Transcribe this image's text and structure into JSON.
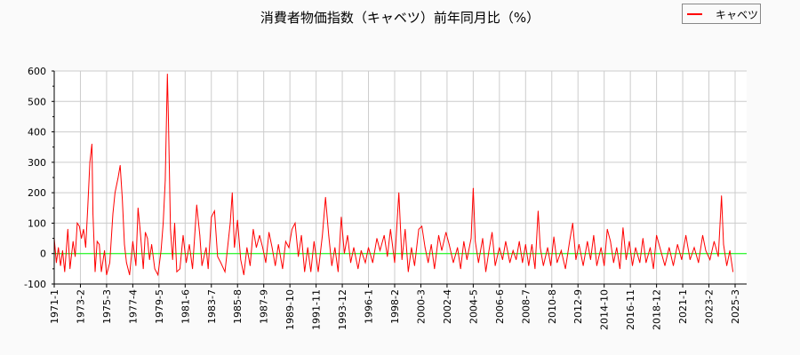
{
  "chart_data": {
    "type": "line",
    "title": "消費者物価指数（キャベツ）前年同月比（%）",
    "ylim": [
      -100,
      600
    ],
    "yticks": [
      "-100",
      "0",
      "100",
      "200",
      "300",
      "400",
      "500",
      "600"
    ],
    "xticks": [
      "1971-1",
      "1973-2",
      "1975-3",
      "1977-4",
      "1979-5",
      "1981-6",
      "1983-7",
      "1985-8",
      "1987-9",
      "1989-10",
      "1991-11",
      "1993-12",
      "1996-1",
      "1998-2",
      "2000-3",
      "2002-4",
      "2004-5",
      "2006-6",
      "2008-7",
      "2010-8",
      "2012-9",
      "2014-10",
      "2016-11",
      "2018-12",
      "2021-1",
      "2023-2",
      "2025-3"
    ],
    "grid": true,
    "legend": "top-right",
    "reference_line": 0,
    "colors": {
      "series": "#ff0000",
      "reference": "#00ff00"
    },
    "series": [
      {
        "name": "キャベツ",
        "points": [
          [
            "1971-1",
            50
          ],
          [
            "1971-3",
            -30
          ],
          [
            "1971-5",
            20
          ],
          [
            "1971-7",
            -40
          ],
          [
            "1971-9",
            10
          ],
          [
            "1971-11",
            -60
          ],
          [
            "1972-2",
            80
          ],
          [
            "1972-4",
            -50
          ],
          [
            "1972-7",
            40
          ],
          [
            "1972-9",
            -10
          ],
          [
            "1972-11",
            100
          ],
          [
            "1973-1",
            90
          ],
          [
            "1973-3",
            50
          ],
          [
            "1973-5",
            80
          ],
          [
            "1973-7",
            20
          ],
          [
            "1973-9",
            150
          ],
          [
            "1973-11",
            300
          ],
          [
            "1974-1",
            360
          ],
          [
            "1974-2",
            130
          ],
          [
            "1974-4",
            -60
          ],
          [
            "1974-6",
            40
          ],
          [
            "1974-8",
            30
          ],
          [
            "1974-10",
            -60
          ],
          [
            "1975-1",
            10
          ],
          [
            "1975-3",
            -70
          ],
          [
            "1975-6",
            -30
          ],
          [
            "1975-9",
            130
          ],
          [
            "1975-11",
            200
          ],
          [
            "1976-2",
            250
          ],
          [
            "1976-4",
            290
          ],
          [
            "1976-6",
            180
          ],
          [
            "1976-8",
            30
          ],
          [
            "1976-10",
            -30
          ],
          [
            "1977-1",
            -70
          ],
          [
            "1977-4",
            40
          ],
          [
            "1977-7",
            -40
          ],
          [
            "1977-9",
            150
          ],
          [
            "1977-11",
            80
          ],
          [
            "1978-2",
            -50
          ],
          [
            "1978-4",
            70
          ],
          [
            "1978-6",
            50
          ],
          [
            "1978-8",
            -20
          ],
          [
            "1978-10",
            30
          ],
          [
            "1979-1",
            -50
          ],
          [
            "1979-4",
            -70
          ],
          [
            "1979-7",
            10
          ],
          [
            "1979-9",
            100
          ],
          [
            "1979-11",
            240
          ],
          [
            "1980-1",
            590
          ],
          [
            "1980-2",
            440
          ],
          [
            "1980-4",
            80
          ],
          [
            "1980-6",
            -20
          ],
          [
            "1980-8",
            100
          ],
          [
            "1980-10",
            -60
          ],
          [
            "1981-1",
            -50
          ],
          [
            "1981-4",
            60
          ],
          [
            "1981-7",
            -30
          ],
          [
            "1981-10",
            30
          ],
          [
            "1982-1",
            -50
          ],
          [
            "1982-5",
            160
          ],
          [
            "1982-8",
            60
          ],
          [
            "1982-10",
            -40
          ],
          [
            "1983-2",
            20
          ],
          [
            "1983-4",
            -50
          ],
          [
            "1983-7",
            120
          ],
          [
            "1983-10",
            140
          ],
          [
            "1984-1",
            -10
          ],
          [
            "1984-4",
            -30
          ],
          [
            "1984-8",
            -60
          ],
          [
            "1985-1",
            100
          ],
          [
            "1985-3",
            200
          ],
          [
            "1985-5",
            20
          ],
          [
            "1985-8",
            110
          ],
          [
            "1985-11",
            -20
          ],
          [
            "1986-2",
            -70
          ],
          [
            "1986-5",
            20
          ],
          [
            "1986-8",
            -40
          ],
          [
            "1986-11",
            80
          ],
          [
            "1987-2",
            20
          ],
          [
            "1987-5",
            60
          ],
          [
            "1987-8",
            20
          ],
          [
            "1987-11",
            -30
          ],
          [
            "1988-2",
            70
          ],
          [
            "1988-5",
            20
          ],
          [
            "1988-8",
            -40
          ],
          [
            "1988-11",
            30
          ],
          [
            "1989-3",
            -50
          ],
          [
            "1989-6",
            40
          ],
          [
            "1989-9",
            20
          ],
          [
            "1989-12",
            80
          ],
          [
            "1990-3",
            100
          ],
          [
            "1990-6",
            -10
          ],
          [
            "1990-9",
            60
          ],
          [
            "1990-12",
            -60
          ],
          [
            "1991-3",
            20
          ],
          [
            "1991-6",
            -60
          ],
          [
            "1991-9",
            40
          ],
          [
            "1992-1",
            -60
          ],
          [
            "1992-5",
            60
          ],
          [
            "1992-8",
            185
          ],
          [
            "1992-11",
            60
          ],
          [
            "1993-2",
            -40
          ],
          [
            "1993-5",
            20
          ],
          [
            "1993-8",
            -60
          ],
          [
            "1993-11",
            120
          ],
          [
            "1994-2",
            0
          ],
          [
            "1994-5",
            60
          ],
          [
            "1994-8",
            -30
          ],
          [
            "1994-11",
            20
          ],
          [
            "1995-3",
            -50
          ],
          [
            "1995-6",
            10
          ],
          [
            "1995-10",
            -30
          ],
          [
            "1996-1",
            20
          ],
          [
            "1996-5",
            -30
          ],
          [
            "1996-9",
            50
          ],
          [
            "1996-12",
            10
          ],
          [
            "1997-4",
            60
          ],
          [
            "1997-7",
            -10
          ],
          [
            "1997-10",
            80
          ],
          [
            "1998-2",
            -30
          ],
          [
            "1998-6",
            200
          ],
          [
            "1998-9",
            -20
          ],
          [
            "1998-12",
            80
          ],
          [
            "1999-3",
            -60
          ],
          [
            "1999-6",
            20
          ],
          [
            "1999-9",
            -40
          ],
          [
            "2000-1",
            80
          ],
          [
            "2000-4",
            90
          ],
          [
            "2000-7",
            20
          ],
          [
            "2000-10",
            -30
          ],
          [
            "2001-1",
            30
          ],
          [
            "2001-4",
            -50
          ],
          [
            "2001-8",
            60
          ],
          [
            "2001-11",
            10
          ],
          [
            "2002-3",
            70
          ],
          [
            "2002-6",
            30
          ],
          [
            "2002-10",
            -30
          ],
          [
            "2003-2",
            20
          ],
          [
            "2003-5",
            -50
          ],
          [
            "2003-8",
            40
          ],
          [
            "2003-11",
            -20
          ],
          [
            "2004-3",
            50
          ],
          [
            "2004-5",
            215
          ],
          [
            "2004-7",
            40
          ],
          [
            "2004-10",
            -30
          ],
          [
            "2005-2",
            50
          ],
          [
            "2005-5",
            -60
          ],
          [
            "2005-8",
            10
          ],
          [
            "2005-11",
            70
          ],
          [
            "2006-2",
            -40
          ],
          [
            "2006-6",
            20
          ],
          [
            "2006-9",
            -20
          ],
          [
            "2006-12",
            40
          ],
          [
            "2007-4",
            -30
          ],
          [
            "2007-7",
            10
          ],
          [
            "2007-10",
            -20
          ],
          [
            "2008-1",
            40
          ],
          [
            "2008-4",
            -30
          ],
          [
            "2008-7",
            30
          ],
          [
            "2008-10",
            -40
          ],
          [
            "2009-1",
            30
          ],
          [
            "2009-4",
            -50
          ],
          [
            "2009-7",
            140
          ],
          [
            "2009-9",
            20
          ],
          [
            "2009-12",
            -40
          ],
          [
            "2010-4",
            20
          ],
          [
            "2010-7",
            -40
          ],
          [
            "2010-10",
            55
          ],
          [
            "2011-1",
            -30
          ],
          [
            "2011-5",
            10
          ],
          [
            "2011-9",
            -50
          ],
          [
            "2012-1",
            40
          ],
          [
            "2012-4",
            100
          ],
          [
            "2012-7",
            -20
          ],
          [
            "2012-10",
            30
          ],
          [
            "2013-2",
            -40
          ],
          [
            "2013-6",
            40
          ],
          [
            "2013-9",
            -20
          ],
          [
            "2013-12",
            60
          ],
          [
            "2014-3",
            -40
          ],
          [
            "2014-7",
            20
          ],
          [
            "2014-10",
            -40
          ],
          [
            "2015-1",
            80
          ],
          [
            "2015-4",
            40
          ],
          [
            "2015-7",
            -30
          ],
          [
            "2015-10",
            20
          ],
          [
            "2016-1",
            -50
          ],
          [
            "2016-4",
            85
          ],
          [
            "2016-7",
            -20
          ],
          [
            "2016-10",
            40
          ],
          [
            "2017-1",
            -40
          ],
          [
            "2017-4",
            20
          ],
          [
            "2017-8",
            -30
          ],
          [
            "2017-11",
            50
          ],
          [
            "2018-2",
            -30
          ],
          [
            "2018-6",
            20
          ],
          [
            "2018-9",
            -50
          ],
          [
            "2018-12",
            60
          ],
          [
            "2019-4",
            10
          ],
          [
            "2019-8",
            -40
          ],
          [
            "2019-12",
            20
          ],
          [
            "2020-4",
            -40
          ],
          [
            "2020-8",
            30
          ],
          [
            "2020-12",
            -20
          ],
          [
            "2021-4",
            60
          ],
          [
            "2021-8",
            -20
          ],
          [
            "2021-12",
            20
          ],
          [
            "2022-4",
            -30
          ],
          [
            "2022-8",
            60
          ],
          [
            "2022-11",
            10
          ],
          [
            "2023-3",
            -20
          ],
          [
            "2023-7",
            40
          ],
          [
            "2023-11",
            -10
          ],
          [
            "2024-2",
            190
          ],
          [
            "2024-4",
            30
          ],
          [
            "2024-7",
            -40
          ],
          [
            "2024-10",
            10
          ],
          [
            "2025-1",
            -60
          ]
        ]
      }
    ]
  }
}
